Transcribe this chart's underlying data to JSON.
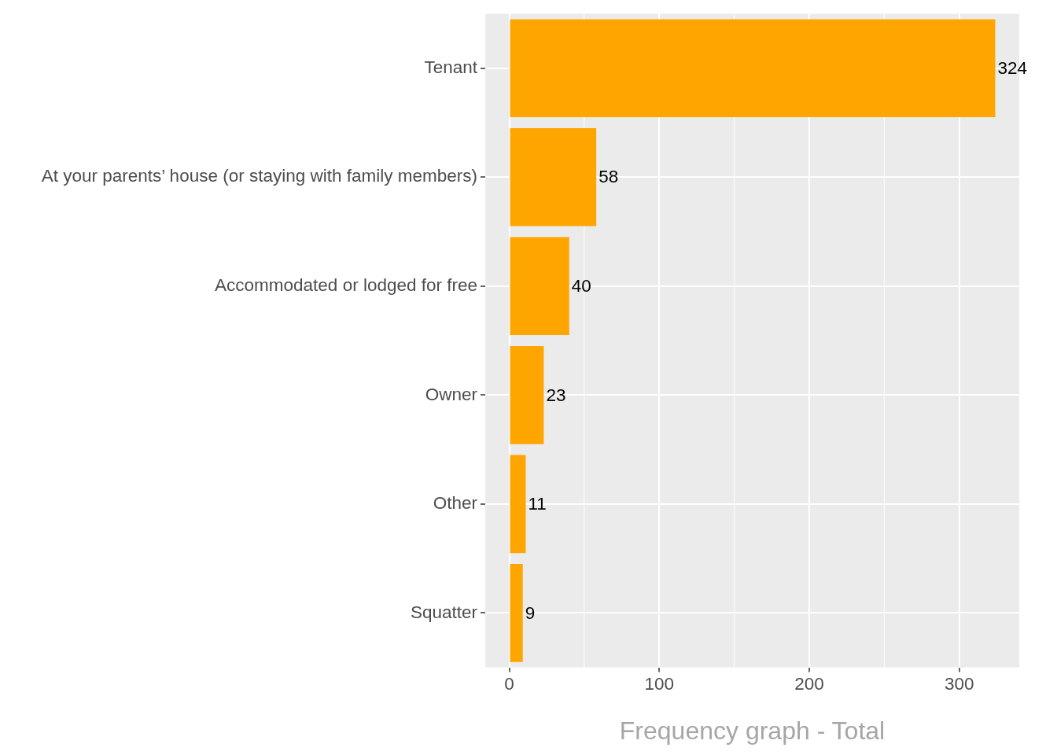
{
  "chart_data": {
    "type": "bar",
    "orientation": "horizontal",
    "categories": [
      "Tenant",
      "At your parents’ house (or staying with family members)",
      "Accommodated or lodged for free",
      "Owner",
      "Other",
      "Squatter"
    ],
    "values": [
      324,
      58,
      40,
      23,
      11,
      9
    ],
    "color": "#ffa500",
    "xlim": [
      -16,
      340
    ],
    "xticks": [
      0,
      100,
      200,
      300
    ],
    "xlabel": "Frequency graph - Total",
    "grid": true,
    "data_labels": true
  }
}
